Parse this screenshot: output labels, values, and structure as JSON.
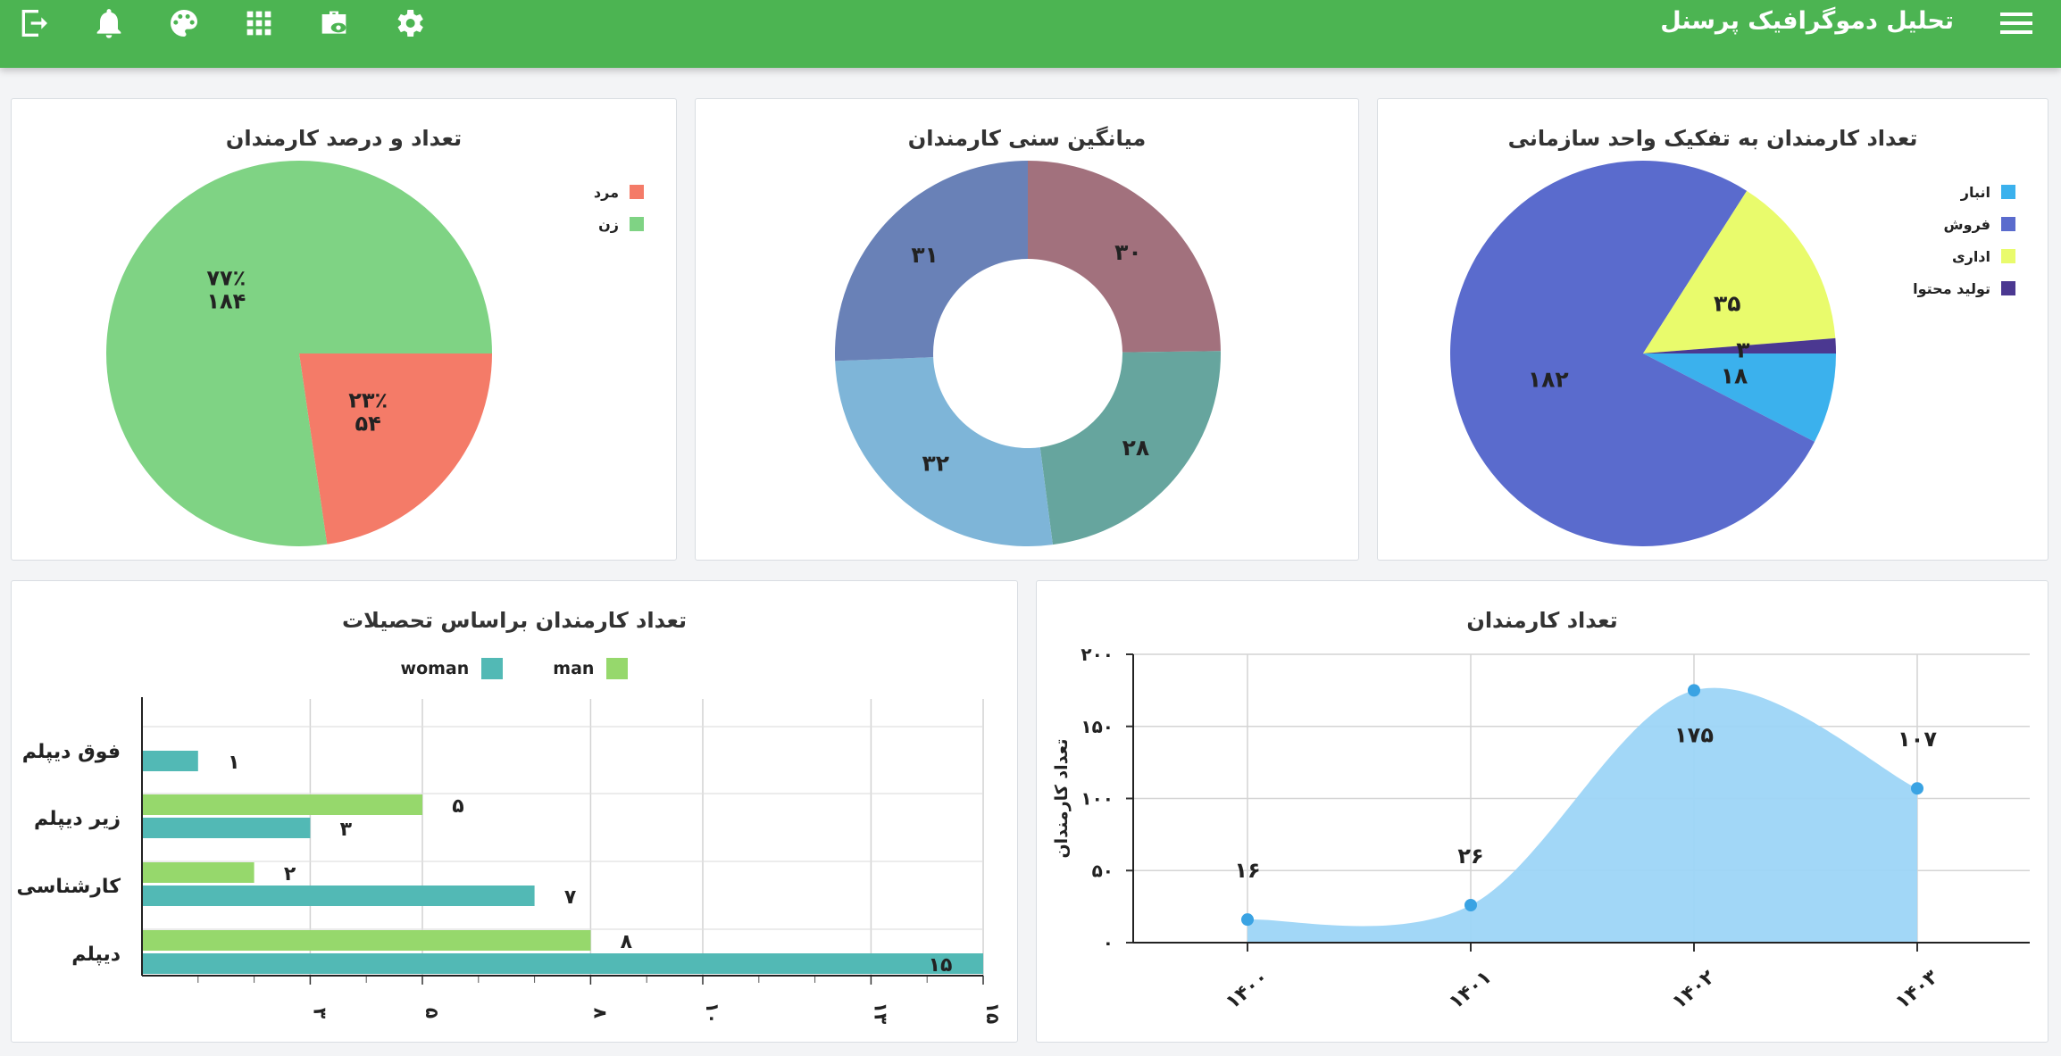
{
  "header": {
    "title": "تحلیل دموگرافیک پرسنل",
    "icons": [
      "exit-icon",
      "bell-icon",
      "palette-icon",
      "apps-grid-icon",
      "briefcase-eye-icon",
      "settings-gear-icon",
      "hamburger-menu-icon"
    ]
  },
  "colors": {
    "header_bg": "#4cb452"
  },
  "chart_data": [
    {
      "type": "pie",
      "title": "تعداد کارمندان به تفکیک واحد سازمانی",
      "legend_position": "top-right",
      "slices": [
        {
          "name": "انبار",
          "value": 18,
          "label": "۱۸",
          "color": "#3bb1ed"
        },
        {
          "name": "فروش",
          "value": 182,
          "label": "۱۸۲",
          "color": "#5a6bcd"
        },
        {
          "name": "اداری",
          "value": 35,
          "label": "۳۵",
          "color": "#e9fb6c"
        },
        {
          "name": "تولید محتوا",
          "value": 3,
          "label": "۳",
          "color": "#4b3891"
        }
      ]
    },
    {
      "type": "pie",
      "donut": true,
      "title": "میانگین سنی کارمندان",
      "slices": [
        {
          "value": 30,
          "label": "۳۰",
          "color": "#a2717d"
        },
        {
          "value": 28,
          "label": "۲۸",
          "color": "#66a59e"
        },
        {
          "value": 32,
          "label": "۳۲",
          "color": "#7eb5d8"
        },
        {
          "value": 31,
          "label": "۳۱",
          "color": "#6981b7"
        }
      ]
    },
    {
      "type": "pie",
      "title": "تعداد و درصد کارمندان",
      "legend_position": "top-right",
      "slices": [
        {
          "name": "مرد",
          "value": 54,
          "label": "۵۴",
          "percent": "۲۳٪",
          "color": "#f47b68"
        },
        {
          "name": "زن",
          "value": 184,
          "label": "۱۸۴",
          "percent": "۷۷٪",
          "color": "#7fd384"
        }
      ]
    },
    {
      "type": "area",
      "title": "تعداد کارمندان",
      "ylabel": "تعداد کارمندان",
      "ylim": [
        0,
        200
      ],
      "yticks": [
        "۰",
        "۵۰",
        "۱۰۰",
        "۱۵۰",
        "۲۰۰"
      ],
      "x": [
        "۱۴۰۰",
        "۱۴۰۱",
        "۱۴۰۲",
        "۱۴۰۳"
      ],
      "values": [
        16,
        26,
        175,
        107
      ],
      "labels": [
        "۱۶",
        "۲۶",
        "۱۷۵",
        "۱۰۷"
      ],
      "grid": true,
      "fill_color": "#9dd5f7",
      "point_color": "#3aa3e3"
    },
    {
      "type": "bar",
      "orientation": "horizontal",
      "title": "تعداد کارمندان براساس تحصیلات",
      "legend_position": "top",
      "categories": [
        "فوق دیپلم",
        "زیر دیپلم",
        "کارشناسی",
        "دیپلم"
      ],
      "xlim": [
        0,
        15
      ],
      "xticks": [
        "۳",
        "۵",
        "۸",
        "۱۰",
        "۱۳",
        "۱۵"
      ],
      "series": [
        {
          "name": "man",
          "color": "#96d86c",
          "values": [
            null,
            5,
            2,
            8
          ],
          "labels": [
            "",
            "۵",
            "۲",
            "۸"
          ]
        },
        {
          "name": "woman",
          "color": "#52b9b5",
          "values": [
            1,
            3,
            7,
            15
          ],
          "labels": [
            "۱",
            "۳",
            "۷",
            "۱۵"
          ]
        }
      ],
      "grid": true
    }
  ]
}
